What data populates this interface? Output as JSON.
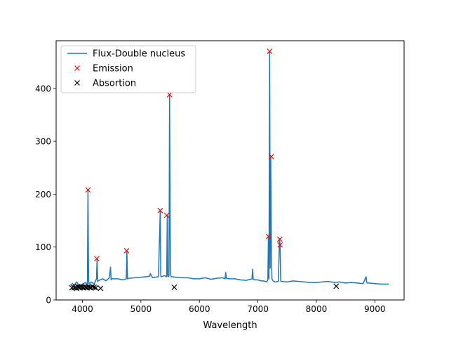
{
  "chart_data": {
    "type": "line",
    "title": "",
    "xlabel": "Wavelength",
    "ylabel": "",
    "xlim": [
      3550,
      9500
    ],
    "ylim": [
      0,
      490
    ],
    "xticks": [
      4000,
      5000,
      6000,
      7000,
      8000,
      9000
    ],
    "yticks": [
      0,
      100,
      200,
      300,
      400
    ],
    "grid": false,
    "legend_position": "top-left",
    "colors": {
      "flux": "#1f77b4",
      "emission": "#ff0000",
      "absorption": "#000000"
    },
    "series": [
      {
        "name": "Flux-Double nucleus",
        "kind": "line",
        "x": [
          3820,
          3860,
          3900,
          3950,
          4000,
          4050,
          4085,
          4095,
          4100,
          4105,
          4115,
          4150,
          4200,
          4240,
          4250,
          4260,
          4300,
          4350,
          4400,
          4460,
          4480,
          4490,
          4500,
          4600,
          4700,
          4750,
          4760,
          4770,
          4800,
          4900,
          5000,
          5100,
          5150,
          5160,
          5200,
          5300,
          5330,
          5340,
          5350,
          5400,
          5440,
          5450,
          5460,
          5470,
          5480,
          5490,
          5500,
          5510,
          5520,
          5600,
          5700,
          5800,
          5900,
          6000,
          6100,
          6200,
          6300,
          6400,
          6440,
          6450,
          6460,
          6500,
          6600,
          6700,
          6800,
          6900,
          6910,
          6920,
          6950,
          7000,
          7050,
          7100,
          7150,
          7170,
          7180,
          7190,
          7200,
          7205,
          7210,
          7220,
          7230,
          7240,
          7260,
          7300,
          7350,
          7370,
          7380,
          7390,
          7400,
          7500,
          7600,
          7700,
          7800,
          7900,
          8000,
          8100,
          8200,
          8300,
          8400,
          8500,
          8600,
          8700,
          8800,
          8850,
          8860,
          8870,
          8900,
          9000,
          9100,
          9200,
          9240
        ],
        "y": [
          32,
          28,
          34,
          26,
          30,
          33,
          30,
          208,
          120,
          36,
          30,
          34,
          30,
          40,
          78,
          35,
          38,
          40,
          36,
          42,
          62,
          38,
          40,
          40,
          38,
          40,
          93,
          40,
          41,
          42,
          43,
          44,
          45,
          50,
          42,
          44,
          168,
          45,
          44,
          46,
          44,
          160,
          46,
          44,
          46,
          388,
          120,
          46,
          44,
          43,
          42,
          42,
          40,
          40,
          42,
          39,
          41,
          42,
          40,
          52,
          41,
          40,
          40,
          38,
          37,
          40,
          58,
          39,
          38,
          38,
          36,
          36,
          34,
          38,
          120,
          40,
          470,
          300,
          60,
          268,
          100,
          40,
          36,
          34,
          35,
          116,
          102,
          36,
          35,
          34,
          36,
          35,
          34,
          33,
          33,
          34,
          35,
          33,
          34,
          32,
          33,
          32,
          31,
          44,
          33,
          32,
          32,
          31,
          30,
          30,
          30
        ]
      },
      {
        "name": "Emission",
        "kind": "marker",
        "x": [
          4095,
          4245,
          4755,
          5330,
          5440,
          5490,
          7180,
          7200,
          7230,
          7375,
          7380
        ],
        "y": [
          208,
          78,
          93,
          169,
          160,
          388,
          120,
          470,
          271,
          115,
          104
        ]
      },
      {
        "name": "Absortion",
        "kind": "marker",
        "x": [
          3820,
          3840,
          3860,
          3880,
          3900,
          3920,
          3940,
          3960,
          3980,
          4000,
          4020,
          4040,
          4060,
          4080,
          4100,
          4120,
          4140,
          4170,
          4200,
          4230,
          4310,
          5570,
          8340
        ],
        "y": [
          23,
          25,
          23,
          24,
          22,
          25,
          24,
          23,
          25,
          24,
          23,
          25,
          24,
          23,
          25,
          24,
          23,
          25,
          24,
          23,
          22,
          24,
          26
        ]
      }
    ]
  }
}
